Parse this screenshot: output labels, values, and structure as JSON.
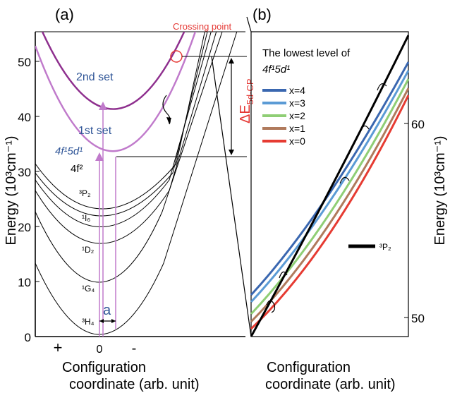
{
  "panel_a": {
    "label": "(a)",
    "yaxis_title": "Energy (10³cm⁻¹)",
    "yticks": [
      "0",
      "10",
      "20",
      "30",
      "40",
      "50"
    ],
    "x_plus": "+",
    "x_zero": "0",
    "x_minus": "-",
    "xaxis_title_line1": "Configuration",
    "xaxis_title_line2": "coordinate (arb. unit)",
    "crossing_label": "Crossing point",
    "set2_label": "2nd set",
    "set1_label": "1st set",
    "state_5d": "4f¹5d¹",
    "state_4f2": "4f²",
    "levels": [
      "³P₂",
      "¹I₆",
      "¹D₂",
      "¹G₄",
      "³H₄"
    ],
    "a_label": "a",
    "delta_label": "ΔE",
    "delta_sub": "5d-CP"
  },
  "panel_b": {
    "label": "(b)",
    "yaxis_title": "Energy (10³cm⁻¹)",
    "yticks": [
      "50",
      "60"
    ],
    "legend_title_line1": "The lowest level of",
    "legend_title_line2": "4f¹5d¹",
    "legend": [
      {
        "label": "x=4",
        "color": "#3a67b0"
      },
      {
        "label": "x=3",
        "color": "#5b9bd5"
      },
      {
        "label": "x=2",
        "color": "#8fce75"
      },
      {
        "label": "x=1",
        "color": "#b07a5c"
      },
      {
        "label": "x=0",
        "color": "#e63b32"
      }
    ],
    "p2_label": "³P₂",
    "xaxis_title_line1": "Configuration",
    "xaxis_title_line2": "coordinate (arb. unit)"
  },
  "colors": {
    "purple_dark": "#8e2f8e",
    "purple_light": "#c07acb",
    "blue_text": "#2f5597",
    "red": "#e53935",
    "black": "#000000"
  }
}
